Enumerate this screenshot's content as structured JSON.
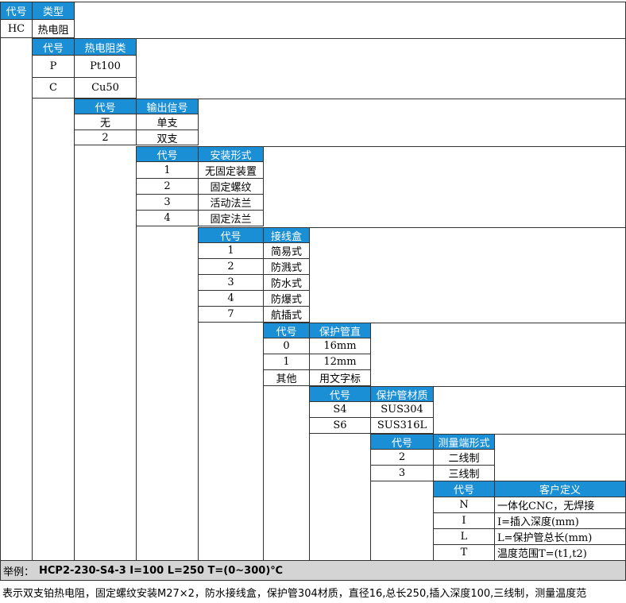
{
  "sections": [
    {
      "header": [
        "代号",
        "类型"
      ],
      "rows": [
        [
          "HC",
          "热电阻"
        ]
      ]
    },
    {
      "header": [
        "代号",
        "热电阻类"
      ],
      "rows": [
        [
          "P",
          "Pt100"
        ],
        [
          "C",
          "Cu50"
        ]
      ]
    },
    {
      "header": [
        "代号",
        "输出信号"
      ],
      "rows": [
        [
          "无",
          "单支"
        ],
        [
          "2",
          "双支"
        ]
      ]
    },
    {
      "header": [
        "代号",
        "安装形式"
      ],
      "rows": [
        [
          "1",
          "无固定装置"
        ],
        [
          "2",
          "固定螺纹"
        ],
        [
          "3",
          "活动法兰"
        ],
        [
          "4",
          "固定法兰"
        ]
      ]
    },
    {
      "header": [
        "代号",
        "接线盒"
      ],
      "rows": [
        [
          "1",
          "简易式"
        ],
        [
          "2",
          "防溅式"
        ],
        [
          "3",
          "防水式"
        ],
        [
          "4",
          "防爆式"
        ],
        [
          "7",
          "航插式"
        ]
      ]
    },
    {
      "header": [
        "代号",
        "保护管直"
      ],
      "rows": [
        [
          "0",
          "16mm"
        ],
        [
          "1",
          "12mm"
        ],
        [
          "其他",
          "用文字标"
        ]
      ]
    },
    {
      "header": [
        "代号",
        "保护管材质"
      ],
      "rows": [
        [
          "S4",
          "SUS304"
        ],
        [
          "S6",
          "SUS316L"
        ]
      ]
    },
    {
      "header": [
        "代号",
        "测量端形式"
      ],
      "rows": [
        [
          "2",
          "二线制"
        ],
        [
          "3",
          "三线制"
        ]
      ]
    },
    {
      "header": [
        "代号",
        "客户定义"
      ],
      "rows": [
        [
          "N",
          "一体化CNC，无焊接"
        ],
        [
          "I",
          "I=插入深度(mm)"
        ],
        [
          "L",
          "L=保护管总长(mm)"
        ],
        [
          "T",
          "温度范围T=(t1,t2)"
        ]
      ]
    }
  ],
  "footer": {
    "example_label": "举例：",
    "example_code": "HCP2-230-S4-3 I=100 L=250 T=(0~300)℃",
    "description": "表示双支铂热电阻，固定螺纹安装M27×2，防水接线盒，保护管304材质，直径16,总长250,插入深度100,三线制，测量温度范"
  }
}
